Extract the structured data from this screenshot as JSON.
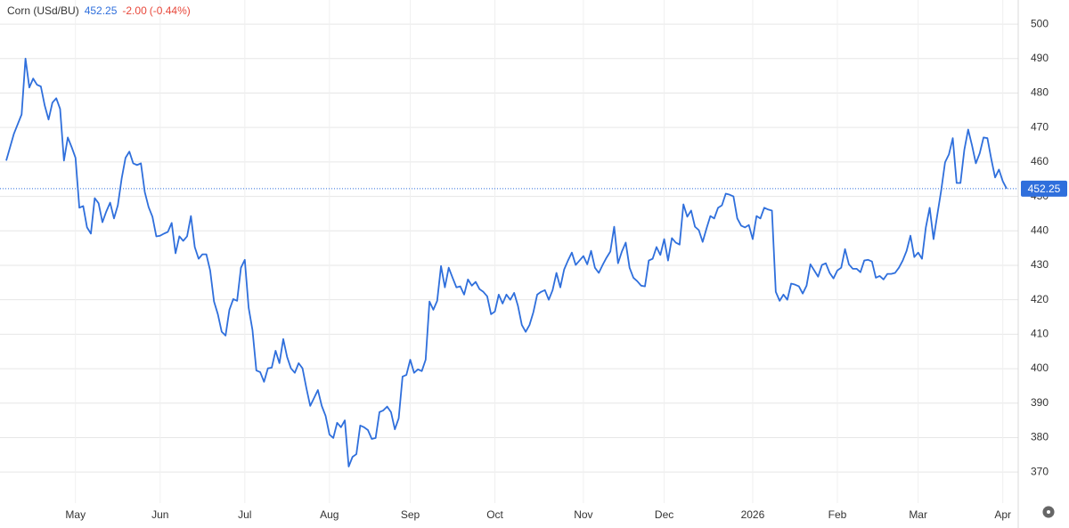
{
  "chart_data": {
    "type": "line",
    "title": "Corn (USd/BU)",
    "last_price": 452.25,
    "change": {
      "value": -2,
      "label": "-2.00"
    },
    "change_pct": {
      "value": -0.44,
      "label": "(-0.44%)"
    },
    "negative_color": "#e8483b",
    "color": "#2f6fdc",
    "grid": true,
    "ylim": [
      361,
      507
    ],
    "yticks": [
      370,
      380,
      390,
      400,
      410,
      420,
      430,
      440,
      450,
      460,
      470,
      480,
      490,
      500
    ],
    "categories": [
      null,
      null,
      null,
      null,
      null,
      null,
      null,
      null,
      null,
      null,
      null,
      null,
      null,
      null,
      null,
      null,
      null,
      null,
      "May",
      null,
      null,
      null,
      null,
      null,
      null,
      null,
      null,
      null,
      null,
      null,
      null,
      null,
      null,
      null,
      null,
      null,
      null,
      null,
      null,
      null,
      "Jun",
      null,
      null,
      null,
      null,
      null,
      null,
      null,
      null,
      null,
      null,
      null,
      null,
      null,
      null,
      null,
      null,
      null,
      null,
      null,
      null,
      null,
      "Jul",
      null,
      null,
      null,
      null,
      null,
      null,
      null,
      null,
      null,
      null,
      null,
      null,
      null,
      null,
      null,
      null,
      null,
      null,
      null,
      null,
      null,
      "Aug",
      null,
      null,
      null,
      null,
      null,
      null,
      null,
      null,
      null,
      null,
      null,
      null,
      null,
      null,
      null,
      null,
      null,
      null,
      null,
      null,
      "Sep",
      null,
      null,
      null,
      null,
      null,
      null,
      null,
      null,
      null,
      null,
      null,
      null,
      null,
      null,
      null,
      null,
      null,
      null,
      null,
      null,
      null,
      "Oct",
      null,
      null,
      null,
      null,
      null,
      null,
      null,
      null,
      null,
      null,
      null,
      null,
      null,
      null,
      null,
      null,
      null,
      null,
      null,
      null,
      null,
      null,
      "Nov",
      null,
      null,
      null,
      null,
      null,
      null,
      null,
      null,
      null,
      null,
      null,
      null,
      null,
      null,
      null,
      null,
      null,
      null,
      null,
      null,
      "Dec",
      null,
      null,
      null,
      null,
      null,
      null,
      null,
      null,
      null,
      null,
      null,
      null,
      null,
      null,
      null,
      null,
      null,
      null,
      null,
      null,
      null,
      null,
      "2026",
      null,
      null,
      null,
      null,
      null,
      null,
      null,
      null,
      null,
      null,
      null,
      null,
      null,
      null,
      null,
      null,
      null,
      null,
      null,
      null,
      null,
      "Feb",
      null,
      null,
      null,
      null,
      null,
      null,
      null,
      null,
      null,
      null,
      null,
      null,
      null,
      null,
      null,
      null,
      null,
      null,
      null,
      null,
      "Mar",
      null,
      null,
      null,
      null,
      null,
      null,
      null,
      null,
      null,
      null,
      null,
      null,
      null,
      null,
      null,
      null,
      null,
      null,
      null,
      null,
      null,
      "Apr",
      null
    ],
    "values": [
      460.4,
      464.3,
      468.2,
      471,
      473.8,
      490,
      481.6,
      484.2,
      482.4,
      481.9,
      476.4,
      472.3,
      477.2,
      478.5,
      475.4,
      460.4,
      467.1,
      464.3,
      461.2,
      446.7,
      447.2,
      441,
      439.2,
      449.5,
      448,
      442.5,
      445.6,
      448.2,
      443.6,
      447.4,
      455.2,
      461.2,
      463,
      459.6,
      459.1,
      459.6,
      451.3,
      446.9,
      444.1,
      438.4,
      438.6,
      439.2,
      439.7,
      442.3,
      433.5,
      438.4,
      437.1,
      438.4,
      444.3,
      435.3,
      431.9,
      433.2,
      433.2,
      428.5,
      419.5,
      415.8,
      410.7,
      409.6,
      417.1,
      420.2,
      419.7,
      429.3,
      431.6,
      417.7,
      411.2,
      399.5,
      399,
      396.2,
      400.1,
      400.3,
      405.2,
      401.6,
      408.6,
      403.4,
      400.1,
      398.8,
      401.6,
      400.1,
      394.4,
      389.2,
      391.5,
      393.8,
      389.2,
      386.3,
      380.9,
      379.9,
      384.3,
      383,
      385,
      371.6,
      374.4,
      375.2,
      383.5,
      383,
      382.2,
      379.6,
      379.9,
      387.4,
      387.9,
      389,
      387.4,
      382.4,
      385.6,
      397.7,
      398.2,
      402.6,
      398.8,
      399.8,
      399.3,
      402.6,
      419.5,
      417.1,
      419.7,
      429.8,
      423.6,
      429.3,
      426.4,
      423.6,
      423.9,
      421.5,
      425.9,
      424.1,
      425.2,
      423.1,
      422.3,
      421,
      415.8,
      416.6,
      421.5,
      418.9,
      421.5,
      420,
      422,
      418.2,
      412.7,
      410.7,
      412.7,
      416.4,
      421.5,
      422.3,
      422.8,
      420,
      422.8,
      427.8,
      423.6,
      428.8,
      431.4,
      433.7,
      430.1,
      431.4,
      432.7,
      430.3,
      434.2,
      429.3,
      427.8,
      430.1,
      432.2,
      434,
      441.2,
      430.6,
      434,
      436.6,
      429.3,
      426.4,
      425.4,
      424.1,
      423.9,
      431.4,
      431.9,
      435.3,
      433,
      437.6,
      431.4,
      437.9,
      436.6,
      436,
      447.7,
      444.1,
      445.9,
      441.2,
      440.2,
      436.8,
      440.7,
      444.3,
      443.6,
      446.7,
      447.4,
      450.8,
      450.5,
      450,
      443.6,
      441.5,
      441,
      441.7,
      437.6,
      444.3,
      443.6,
      446.7,
      446.2,
      445.9,
      422.3,
      419.7,
      421.5,
      420,
      424.7,
      424.4,
      423.9,
      421.8,
      424.1,
      430.3,
      428.5,
      426.7,
      430.1,
      430.6,
      427.8,
      426.2,
      428.5,
      429.3,
      434.7,
      430.3,
      429,
      429,
      428,
      431.4,
      431.6,
      431.1,
      426.4,
      426.9,
      425.9,
      427.5,
      427.5,
      427.8,
      429.3,
      431.4,
      434.2,
      438.6,
      432.4,
      433.7,
      431.9,
      441,
      446.7,
      437.6,
      444.8,
      451.8,
      459.9,
      462.2,
      466.9,
      453.9,
      453.9,
      463.5,
      469.4,
      464.8,
      459.6,
      462.5,
      467.1,
      466.9,
      460.9,
      455.5,
      457.8,
      454.4,
      452.25
    ]
  }
}
